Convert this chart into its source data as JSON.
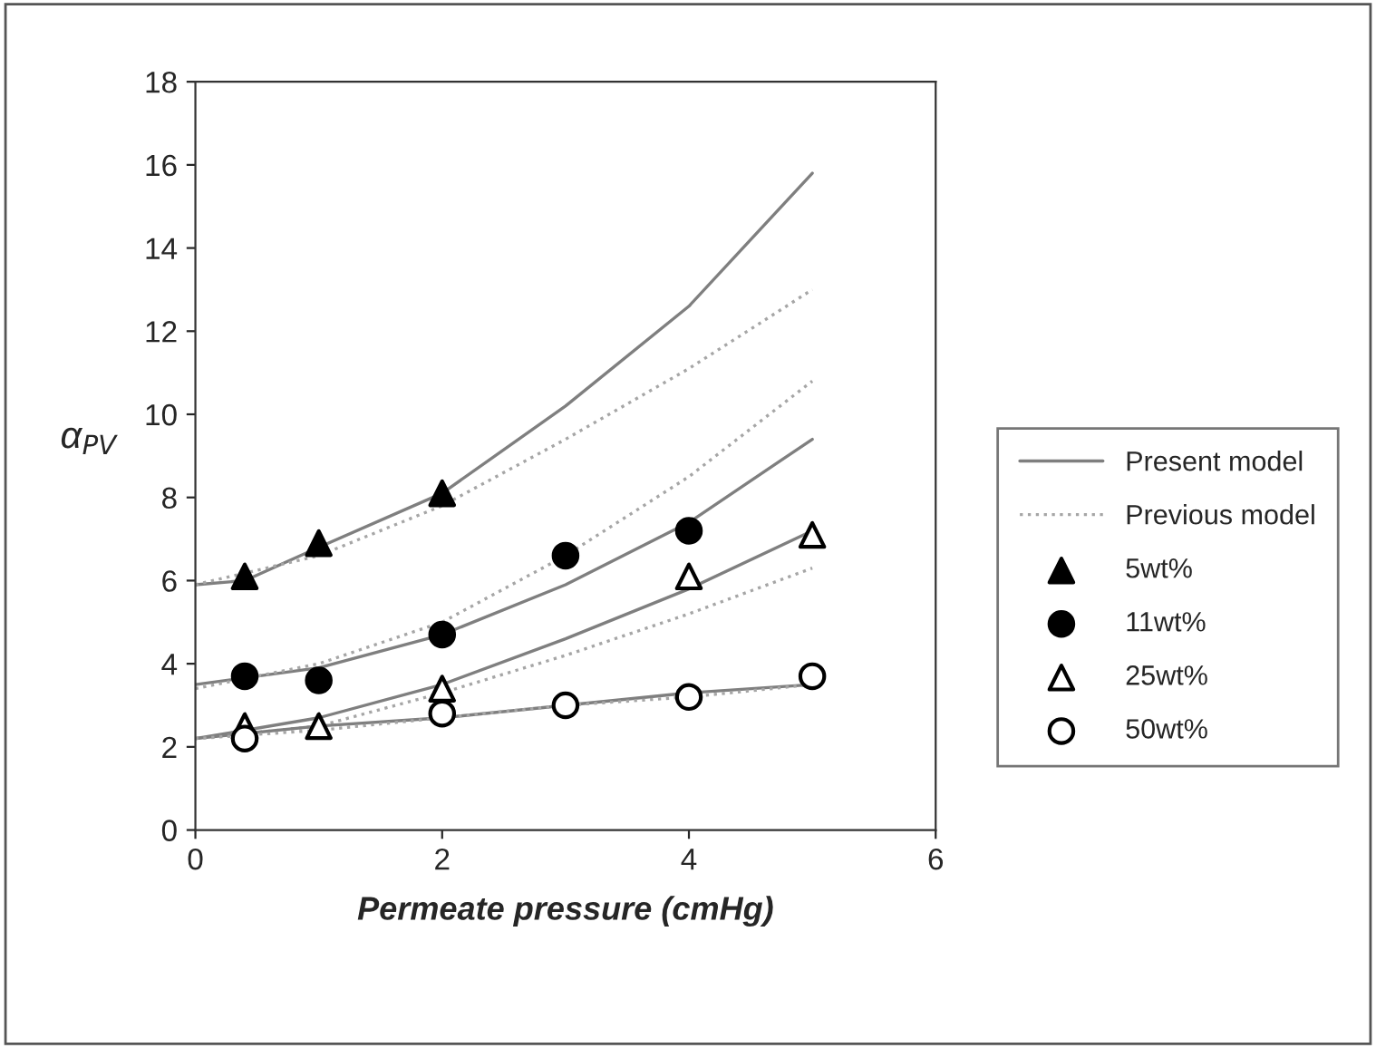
{
  "chart_data": {
    "type": "line",
    "xlabel": "Permeate pressure (cmHg)",
    "ylabel": "α$_{PV}$",
    "xlim": [
      0,
      6
    ],
    "xticks": [
      0,
      2,
      4,
      6
    ],
    "ylim": [
      0,
      18
    ],
    "yticks": [
      0,
      2,
      4,
      6,
      8,
      10,
      12,
      14,
      16,
      18
    ],
    "grid": false,
    "legend": "right",
    "series": [
      {
        "name": "Present model",
        "color": "#7f7f7f",
        "line_style": "solid",
        "marker": "none",
        "x": [
          0,
          0.4,
          1,
          2,
          3,
          4,
          5
        ],
        "values": [
          5.9,
          6.0,
          6.8,
          8.1,
          10.2,
          12.6,
          15.8
        ]
      },
      {
        "name": "Previous model",
        "color": "#a6a6a6",
        "line_style": "dotted",
        "marker": "none",
        "x": [
          0,
          1,
          2,
          3,
          4,
          5
        ],
        "values": [
          5.9,
          6.6,
          7.8,
          9.4,
          11.1,
          13.0
        ]
      },
      {
        "type": "scatter",
        "name": "5wt%",
        "color": "#000000",
        "marker": "triangle",
        "x": [
          0.4,
          1,
          2
        ],
        "values": [
          6.1,
          6.9,
          8.1
        ]
      },
      {
        "type": "scatter",
        "name": "11wt%",
        "color": "#000000",
        "marker": "circle",
        "x": [
          0.4,
          1,
          2,
          3,
          4
        ],
        "values": [
          3.7,
          3.6,
          4.7,
          6.6,
          7.2
        ]
      },
      {
        "type": "scatter",
        "name": "25wt%",
        "color": "#ffffff",
        "marker": "triangle",
        "x": [
          0.4,
          1,
          2,
          4,
          5
        ],
        "values": [
          2.5,
          2.5,
          3.4,
          6.1,
          7.1
        ]
      },
      {
        "type": "scatter",
        "name": "50wt%",
        "color": "#ffffff",
        "marker": "circle",
        "x": [
          0.4,
          2,
          3,
          4,
          5
        ],
        "values": [
          2.2,
          2.8,
          3.0,
          3.2,
          3.7
        ]
      },
      {
        "type": "line",
        "color": "#7f7f7f",
        "line_style": "solid",
        "marker": "none",
        "x": [
          0,
          1,
          2,
          3,
          4,
          5
        ],
        "values": [
          3.5,
          3.9,
          4.7,
          5.9,
          7.4,
          9.4
        ]
      },
      {
        "type": "line",
        "color": "#a6a6a6",
        "line_style": "dotted",
        "marker": "none",
        "x": [
          0,
          1,
          2,
          3,
          4,
          5
        ],
        "values": [
          3.4,
          4.0,
          5.0,
          6.6,
          8.5,
          10.8
        ]
      },
      {
        "type": "line",
        "color": "#7f7f7f",
        "line_style": "solid",
        "marker": "none",
        "x": [
          0,
          1,
          2,
          3,
          4,
          5
        ],
        "values": [
          2.2,
          2.7,
          3.5,
          4.6,
          5.8,
          7.2
        ]
      },
      {
        "type": "line",
        "color": "#a6a6a6",
        "line_style": "dotted",
        "marker": "none",
        "x": [
          0,
          1,
          2,
          3,
          4,
          5
        ],
        "values": [
          2.2,
          2.5,
          3.3,
          4.2,
          5.2,
          6.3
        ]
      },
      {
        "type": "line",
        "color": "#7f7f7f",
        "line_style": "solid",
        "marker": "none",
        "x": [
          0,
          1,
          2,
          3,
          4,
          5
        ],
        "values": [
          2.2,
          2.5,
          2.7,
          3.0,
          3.3,
          3.5
        ]
      },
      {
        "type": "line",
        "color": "#a6a6a6",
        "line_style": "dotted",
        "marker": "none",
        "x": [
          0,
          1,
          2,
          3,
          4,
          5
        ],
        "values": [
          2.2,
          2.4,
          2.7,
          3.0,
          3.2,
          3.5
        ]
      }
    ]
  }
}
